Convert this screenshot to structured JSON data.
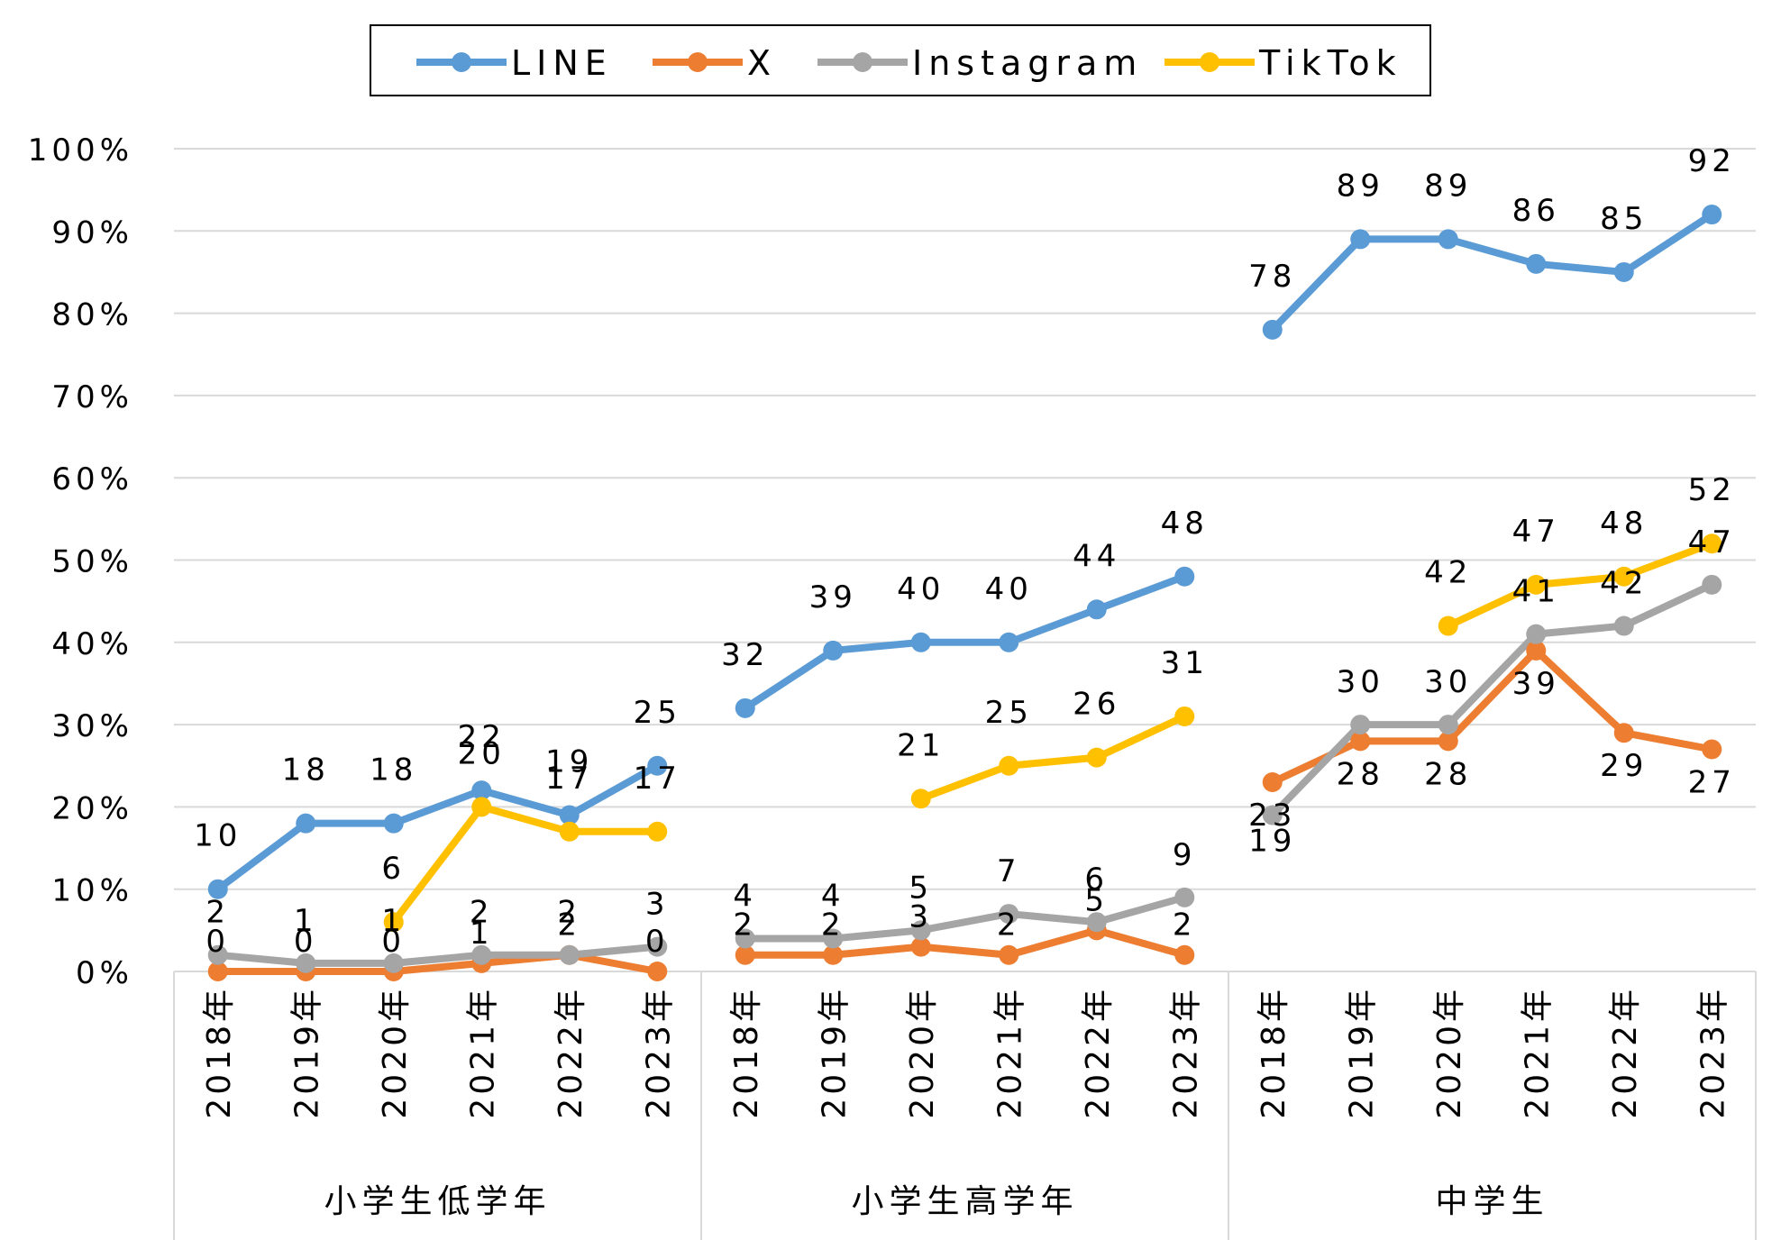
{
  "chart_data": {
    "type": "line",
    "y_tick_labels": [
      "0%",
      "10%",
      "20%",
      "30%",
      "40%",
      "50%",
      "60%",
      "70%",
      "80%",
      "90%",
      "100%"
    ],
    "ylim": [
      0,
      100
    ],
    "grid": true,
    "legend_position": "top",
    "groups": [
      {
        "name": "小学生低学年",
        "categories": [
          "2018年",
          "2019年",
          "2020年",
          "2021年",
          "2022年",
          "2023年"
        ]
      },
      {
        "name": "小学生高学年",
        "categories": [
          "2018年",
          "2019年",
          "2020年",
          "2021年",
          "2022年",
          "2023年"
        ]
      },
      {
        "name": "中学生",
        "categories": [
          "2018年",
          "2019年",
          "2020年",
          "2021年",
          "2022年",
          "2023年"
        ]
      }
    ],
    "series": [
      {
        "name": "LINE",
        "color": "#5B9BD5",
        "groups": [
          [
            10,
            18,
            18,
            22,
            19,
            25
          ],
          [
            32,
            39,
            40,
            40,
            44,
            48
          ],
          [
            78,
            89,
            89,
            86,
            85,
            92
          ]
        ]
      },
      {
        "name": "X",
        "color": "#ED7D31",
        "groups": [
          [
            0,
            0,
            0,
            1,
            2,
            0
          ],
          [
            2,
            2,
            3,
            2,
            5,
            2
          ],
          [
            23,
            28,
            28,
            39,
            29,
            27
          ]
        ]
      },
      {
        "name": "Instagram",
        "color": "#A5A5A5",
        "groups": [
          [
            2,
            1,
            1,
            2,
            2,
            3
          ],
          [
            4,
            4,
            5,
            7,
            6,
            9
          ],
          [
            19,
            30,
            30,
            41,
            42,
            47
          ]
        ]
      },
      {
        "name": "TikTok",
        "color": "#FFC000",
        "groups": [
          [
            null,
            null,
            6,
            20,
            17,
            17
          ],
          [
            null,
            null,
            21,
            25,
            26,
            31
          ],
          [
            null,
            null,
            42,
            47,
            48,
            52
          ]
        ]
      }
    ]
  }
}
